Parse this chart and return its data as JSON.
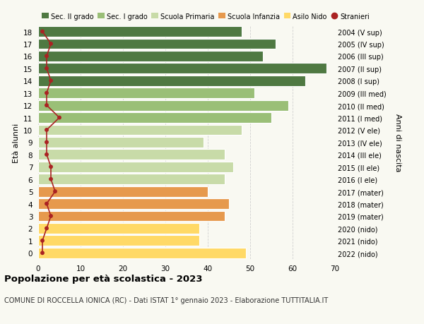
{
  "ages": [
    0,
    1,
    2,
    3,
    4,
    5,
    6,
    7,
    8,
    9,
    10,
    11,
    12,
    13,
    14,
    15,
    16,
    17,
    18
  ],
  "bar_values": [
    49,
    38,
    38,
    44,
    45,
    40,
    44,
    46,
    44,
    39,
    48,
    55,
    59,
    51,
    63,
    68,
    53,
    56,
    48
  ],
  "stranieri_values": [
    1,
    1,
    2,
    3,
    2,
    4,
    3,
    3,
    2,
    2,
    2,
    5,
    2,
    2,
    3,
    2,
    2,
    3,
    1
  ],
  "bar_colors": [
    "#ffd966",
    "#ffd966",
    "#ffd966",
    "#e6994d",
    "#e6994d",
    "#e6994d",
    "#c8dba8",
    "#c8dba8",
    "#c8dba8",
    "#c8dba8",
    "#c8dba8",
    "#9abf77",
    "#9abf77",
    "#9abf77",
    "#4f7942",
    "#4f7942",
    "#4f7942",
    "#4f7942",
    "#4f7942"
  ],
  "right_labels": [
    "2022 (nido)",
    "2021 (nido)",
    "2020 (nido)",
    "2019 (mater)",
    "2018 (mater)",
    "2017 (mater)",
    "2016 (I ele)",
    "2015 (II ele)",
    "2014 (III ele)",
    "2013 (IV ele)",
    "2012 (V ele)",
    "2011 (I med)",
    "2010 (II med)",
    "2009 (III med)",
    "2008 (I sup)",
    "2007 (II sup)",
    "2006 (III sup)",
    "2005 (IV sup)",
    "2004 (V sup)"
  ],
  "legend_labels": [
    "Sec. II grado",
    "Sec. I grado",
    "Scuola Primaria",
    "Scuola Infanzia",
    "Asilo Nido",
    "Stranieri"
  ],
  "legend_colors": [
    "#4f7942",
    "#9abf77",
    "#c8dba8",
    "#e6994d",
    "#ffd966",
    "#cc3333"
  ],
  "ylabel": "Età alunni",
  "right_ylabel": "Anni di nascita",
  "title": "Popolazione per età scolastica - 2023",
  "subtitle": "COMUNE DI ROCCELLA IONICA (RC) - Dati ISTAT 1° gennaio 2023 - Elaborazione TUTTITALIA.IT",
  "xlim": [
    0,
    70
  ],
  "background_color": "#f9f9f2",
  "stranieri_color": "#aa2222"
}
